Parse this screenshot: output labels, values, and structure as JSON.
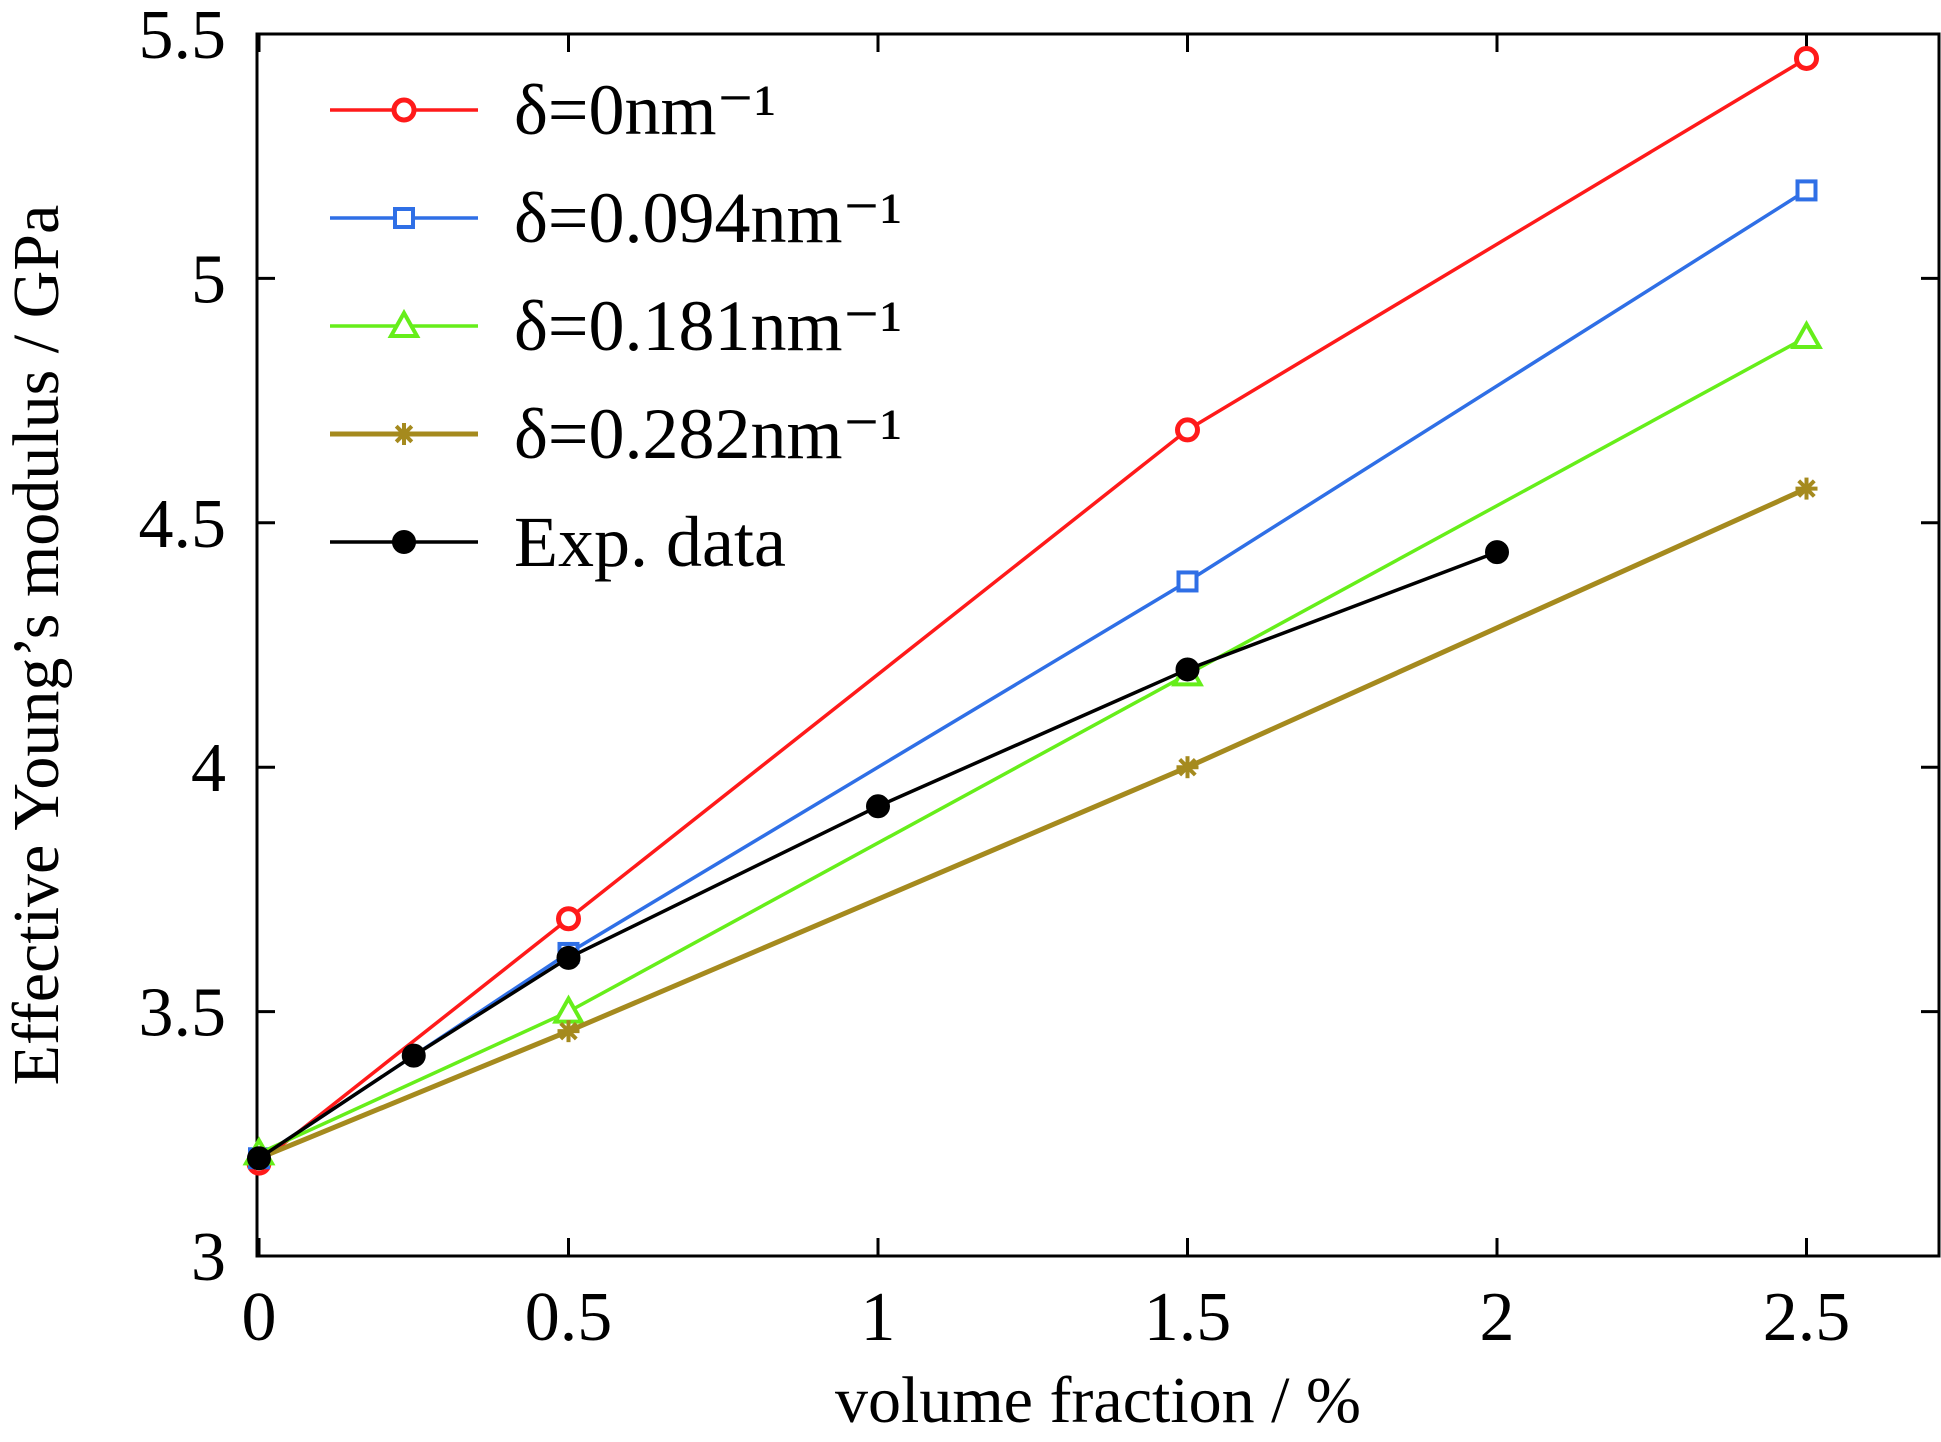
{
  "chart_data": {
    "type": "line",
    "xlabel": "volume fraction / %",
    "ylabel": "Effective Young’s modulus / GPa",
    "xlim": [
      0,
      2.72
    ],
    "ylim": [
      3,
      5.5
    ],
    "xticks": [
      "0",
      "0.5",
      "1",
      "1.5",
      "2",
      "2.5"
    ],
    "yticks": [
      "3",
      "3.5",
      "4",
      "4.5",
      "5",
      "5.5"
    ],
    "grid": false,
    "legend_position": "top-left",
    "series": [
      {
        "name": "δ=0nm⁻¹",
        "color": "#ff1a1a",
        "marker": "circle-open",
        "x": [
          0,
          0.5,
          1.5,
          2.5
        ],
        "y": [
          3.19,
          3.69,
          4.69,
          5.45
        ]
      },
      {
        "name": "δ=0.094nm⁻¹",
        "color": "#2f6fe6",
        "marker": "square-open",
        "x": [
          0,
          0.5,
          1.5,
          2.5
        ],
        "y": [
          3.2,
          3.62,
          4.38,
          5.18
        ]
      },
      {
        "name": "δ=0.181nm⁻¹",
        "color": "#66ee1a",
        "marker": "triangle-open",
        "x": [
          0,
          0.5,
          1.5,
          2.5
        ],
        "y": [
          3.21,
          3.5,
          4.19,
          4.88
        ]
      },
      {
        "name": "δ=0.282nm⁻¹",
        "color": "#a58a1e",
        "marker": "asterisk",
        "x": [
          0,
          0.5,
          1.5,
          2.5
        ],
        "y": [
          3.2,
          3.46,
          4.0,
          4.57
        ]
      },
      {
        "name": "Exp. data",
        "color": "#000000",
        "marker": "circle-filled",
        "x": [
          0,
          0.25,
          0.5,
          1.0,
          1.5,
          2.0
        ],
        "y": [
          3.2,
          3.41,
          3.61,
          3.92,
          4.2,
          4.44
        ]
      }
    ]
  }
}
